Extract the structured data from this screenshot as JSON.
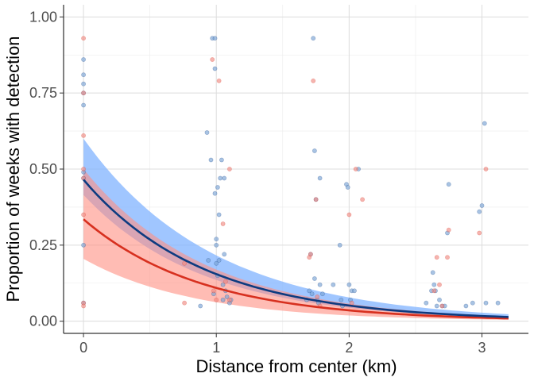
{
  "chart_data": {
    "type": "scatter",
    "xlabel": "Distance from center (km)",
    "ylabel": "Proportion of weeks with detection",
    "xlim": [
      -0.15,
      3.35
    ],
    "ylim": [
      -0.04,
      1.04
    ],
    "x_ticks": [
      0,
      1,
      2,
      3
    ],
    "y_ticks": [
      0.0,
      0.25,
      0.5,
      0.75,
      1.0
    ],
    "x_tick_labels": [
      "0",
      "1",
      "2",
      "3"
    ],
    "y_tick_labels": [
      "0.00",
      "0.25",
      "0.50",
      "0.75",
      "1.00"
    ],
    "grid": true,
    "legend": "none",
    "colors": {
      "blue_line": "#0d3b80",
      "blue_band": "#80b3ff",
      "blue_point": "#7aa3d4",
      "red_line": "#d7301f",
      "red_band": "#ff8f82",
      "red_point": "#f08c84"
    },
    "series": [
      {
        "color": "blue",
        "fit": {
          "intercept": 0.465,
          "decay_per_km": 1.1,
          "x_range": [
            0,
            3.2
          ]
        },
        "band": {
          "lower_intercept": 0.415,
          "upper_intercept": 0.6,
          "lower_decay": 1.12,
          "upper_decay": 1.02
        },
        "points": [
          [
            0,
            0.86
          ],
          [
            0,
            0.81
          ],
          [
            0,
            0.78
          ],
          [
            0,
            0.75
          ],
          [
            0,
            0.71
          ],
          [
            0,
            0.49
          ],
          [
            0,
            0.47
          ],
          [
            0,
            0.25
          ],
          [
            0,
            0.06
          ],
          [
            0.88,
            0.05
          ],
          [
            0.93,
            0.62
          ],
          [
            0.94,
            0.2
          ],
          [
            0.96,
            0.53
          ],
          [
            0.97,
            0.93
          ],
          [
            0.98,
            0.09
          ],
          [
            0.99,
            0.93
          ],
          [
            0.99,
            0.83
          ],
          [
            0.99,
            0.42
          ],
          [
            1.0,
            0.27
          ],
          [
            1.0,
            0.25
          ],
          [
            1.0,
            0.19
          ],
          [
            1.01,
            0.44
          ],
          [
            1.01,
            0.15
          ],
          [
            1.02,
            0.35
          ],
          [
            1.02,
            0.2
          ],
          [
            1.03,
            0.47
          ],
          [
            1.04,
            0.53
          ],
          [
            1.05,
            0.12
          ],
          [
            1.05,
            0.07
          ],
          [
            1.06,
            0.47
          ],
          [
            1.06,
            0.22
          ],
          [
            1.07,
            0.1
          ],
          [
            1.08,
            0.08
          ],
          [
            1.1,
            0.06
          ],
          [
            1.11,
            0.07
          ],
          [
            1.68,
            0.07
          ],
          [
            1.7,
            0.1
          ],
          [
            1.71,
            0.22
          ],
          [
            1.72,
            0.09
          ],
          [
            1.73,
            0.93
          ],
          [
            1.74,
            0.56
          ],
          [
            1.74,
            0.14
          ],
          [
            1.75,
            0.4
          ],
          [
            1.76,
            0.07
          ],
          [
            1.77,
            0.06
          ],
          [
            1.78,
            0.47
          ],
          [
            1.78,
            0.12
          ],
          [
            1.8,
            0.09
          ],
          [
            1.88,
            0.12
          ],
          [
            1.93,
            0.25
          ],
          [
            1.94,
            0.07
          ],
          [
            1.95,
            0.05
          ],
          [
            1.98,
            0.45
          ],
          [
            1.99,
            0.44
          ],
          [
            2.0,
            0.12
          ],
          [
            2.01,
            0.07
          ],
          [
            2.02,
            0.1
          ],
          [
            2.04,
            0.1
          ],
          [
            2.07,
            0.5
          ],
          [
            2.58,
            0.06
          ],
          [
            2.62,
            0.1
          ],
          [
            2.63,
            0.16
          ],
          [
            2.64,
            0.12
          ],
          [
            2.65,
            0.1
          ],
          [
            2.66,
            0.05
          ],
          [
            2.68,
            0.07
          ],
          [
            2.7,
            0.05
          ],
          [
            2.72,
            0.05
          ],
          [
            2.74,
            0.29
          ],
          [
            2.75,
            0.45
          ],
          [
            2.88,
            0.05
          ],
          [
            2.93,
            0.06
          ],
          [
            2.98,
            0.36
          ],
          [
            3.0,
            0.38
          ],
          [
            3.02,
            0.65
          ],
          [
            3.03,
            0.06
          ],
          [
            3.12,
            0.06
          ]
        ]
      },
      {
        "color": "red",
        "fit": {
          "intercept": 0.335,
          "decay_per_km": 1.12,
          "x_range": [
            0,
            3.2
          ]
        },
        "band": {
          "lower_intercept": 0.205,
          "upper_intercept": 0.5,
          "lower_decay": 1.19,
          "upper_decay": 1.08
        },
        "points": [
          [
            0,
            0.93
          ],
          [
            0,
            0.75
          ],
          [
            0,
            0.61
          ],
          [
            0,
            0.5
          ],
          [
            0,
            0.47
          ],
          [
            0,
            0.35
          ],
          [
            0,
            0.06
          ],
          [
            0,
            0.05
          ],
          [
            0.76,
            0.19
          ],
          [
            0.76,
            0.06
          ],
          [
            0.97,
            0.86
          ],
          [
            0.98,
            0.1
          ],
          [
            1.0,
            0.07
          ],
          [
            1.02,
            0.79
          ],
          [
            1.05,
            0.32
          ],
          [
            1.07,
            0.13
          ],
          [
            1.1,
            0.5
          ],
          [
            1.1,
            0.07
          ],
          [
            1.7,
            0.21
          ],
          [
            1.71,
            0.22
          ],
          [
            1.73,
            0.79
          ],
          [
            1.75,
            0.4
          ],
          [
            1.76,
            0.08
          ],
          [
            1.78,
            0.05
          ],
          [
            2.0,
            0.35
          ],
          [
            2.02,
            0.06
          ],
          [
            2.05,
            0.5
          ],
          [
            2.1,
            0.4
          ],
          [
            2.64,
            0.1
          ],
          [
            2.66,
            0.21
          ],
          [
            2.68,
            0.12
          ],
          [
            2.7,
            0.05
          ],
          [
            2.74,
            0.21
          ],
          [
            2.75,
            0.3
          ],
          [
            2.98,
            0.29
          ],
          [
            3.03,
            0.5
          ]
        ]
      }
    ]
  }
}
